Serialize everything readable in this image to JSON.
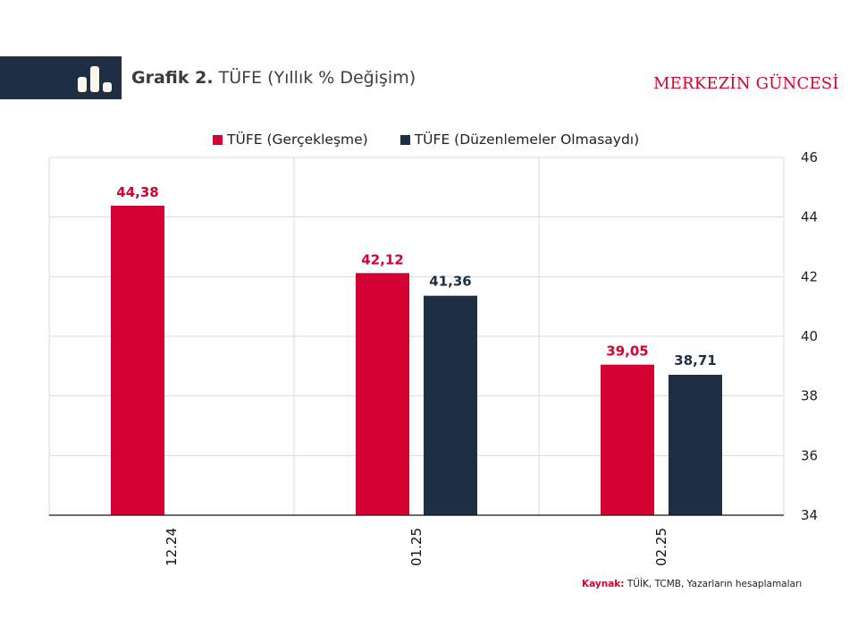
{
  "header": {
    "title_bold": "Grafik 2.",
    "title_rest": " TÜFE (Yıllık % Değişim)",
    "brand": "MERKEZİN GÜNCESİ",
    "icon": "bar-chart-icon"
  },
  "source": {
    "label": "Kaynak:",
    "text": " TÜİK,  TCMB, Yazarların  hesaplamaları"
  },
  "colors": {
    "red": "#d50032",
    "navy": "#1e2f44",
    "grid": "#d9d9d9"
  },
  "chart_data": {
    "type": "bar",
    "title": "Grafik 2. TÜFE (Yıllık % Değişim)",
    "xlabel": "",
    "ylabel": "",
    "categories": [
      "12.24",
      "01.25",
      "02.25"
    ],
    "series": [
      {
        "name": "TÜFE (Gerçekleşme)",
        "color": "#d50032",
        "values": [
          44.38,
          42.12,
          39.05
        ],
        "labels": [
          "44,38",
          "42,12",
          "39,05"
        ]
      },
      {
        "name": "TÜFE (Düzenlemeler Olmasaydı)",
        "color": "#1e2f44",
        "values": [
          null,
          41.36,
          38.71
        ],
        "labels": [
          null,
          "41,36",
          "38,71"
        ]
      }
    ],
    "ylim": [
      34,
      46
    ],
    "yticks": [
      34,
      36,
      38,
      40,
      42,
      44,
      46
    ],
    "yaxis_side": "right",
    "grid": true,
    "legend_position": "top"
  }
}
